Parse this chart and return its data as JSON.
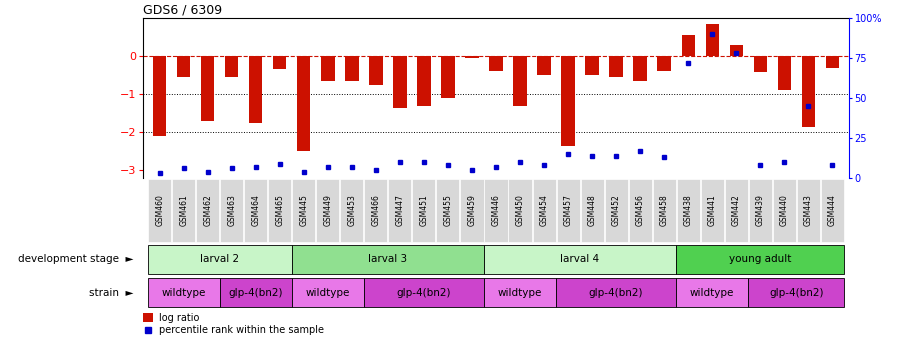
{
  "title": "GDS6 / 6309",
  "samples": [
    "GSM460",
    "GSM461",
    "GSM462",
    "GSM463",
    "GSM464",
    "GSM465",
    "GSM445",
    "GSM449",
    "GSM453",
    "GSM466",
    "GSM447",
    "GSM451",
    "GSM455",
    "GSM459",
    "GSM446",
    "GSM450",
    "GSM454",
    "GSM457",
    "GSM448",
    "GSM452",
    "GSM456",
    "GSM458",
    "GSM438",
    "GSM441",
    "GSM442",
    "GSM439",
    "GSM440",
    "GSM443",
    "GSM444"
  ],
  "log_ratio": [
    -2.1,
    -0.55,
    -1.7,
    -0.55,
    -1.75,
    -0.35,
    -2.5,
    -0.65,
    -0.65,
    -0.75,
    -1.35,
    -1.3,
    -1.1,
    -0.05,
    -0.4,
    -1.3,
    -0.5,
    -2.35,
    -0.5,
    -0.55,
    -0.65,
    -0.4,
    0.55,
    0.85,
    0.28,
    -0.42,
    -0.88,
    -1.85,
    -0.32
  ],
  "percentile": [
    3,
    6,
    4,
    6,
    7,
    9,
    4,
    7,
    7,
    5,
    10,
    10,
    8,
    5,
    7,
    10,
    8,
    15,
    14,
    14,
    17,
    13,
    72,
    90,
    78,
    8,
    10,
    45,
    8
  ],
  "dev_stages": [
    {
      "label": "larval 2",
      "start": 0,
      "end": 6,
      "color": "#c8f5c8"
    },
    {
      "label": "larval 3",
      "start": 6,
      "end": 14,
      "color": "#90e090"
    },
    {
      "label": "larval 4",
      "start": 14,
      "end": 22,
      "color": "#c8f5c8"
    },
    {
      "label": "young adult",
      "start": 22,
      "end": 29,
      "color": "#50d050"
    }
  ],
  "strains": [
    {
      "label": "wildtype",
      "start": 0,
      "end": 3,
      "color": "#e878e8"
    },
    {
      "label": "glp-4(bn2)",
      "start": 3,
      "end": 6,
      "color": "#cc44cc"
    },
    {
      "label": "wildtype",
      "start": 6,
      "end": 9,
      "color": "#e878e8"
    },
    {
      "label": "glp-4(bn2)",
      "start": 9,
      "end": 14,
      "color": "#cc44cc"
    },
    {
      "label": "wildtype",
      "start": 14,
      "end": 17,
      "color": "#e878e8"
    },
    {
      "label": "glp-4(bn2)",
      "start": 17,
      "end": 22,
      "color": "#cc44cc"
    },
    {
      "label": "wildtype",
      "start": 22,
      "end": 25,
      "color": "#e878e8"
    },
    {
      "label": "glp-4(bn2)",
      "start": 25,
      "end": 29,
      "color": "#cc44cc"
    }
  ],
  "ylim_left": [
    -3.2,
    1.0
  ],
  "yticks_left": [
    0,
    -1,
    -2,
    -3
  ],
  "yticks_right": [
    0,
    25,
    50,
    75,
    100
  ],
  "bar_color": "#cc1100",
  "dot_color": "#0000cc",
  "background_color": "#ffffff"
}
